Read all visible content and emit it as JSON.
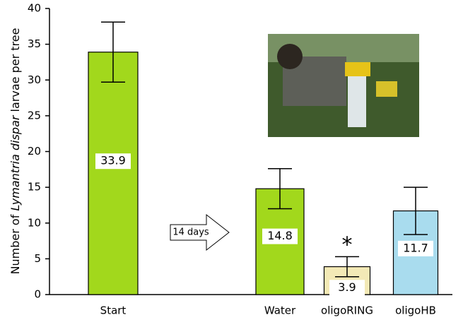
{
  "chart_data": {
    "type": "bar",
    "y_label_parts": [
      "Number of ",
      "Lymantria dispar",
      " larvae per tree"
    ],
    "categories": [
      "Start",
      "Water",
      "oligoRING",
      "oligoHB"
    ],
    "values": [
      33.9,
      14.8,
      3.9,
      11.7
    ],
    "errors": [
      4.2,
      2.8,
      1.4,
      3.3
    ],
    "colors": [
      "#a2d81c",
      "#a2d81c",
      "#f3e9b6",
      "#a9dcee"
    ],
    "ylim": [
      0,
      40
    ],
    "yticks": [
      0,
      5,
      10,
      15,
      20,
      25,
      30,
      35,
      40
    ],
    "annotations": [
      "14 days",
      "*"
    ]
  }
}
